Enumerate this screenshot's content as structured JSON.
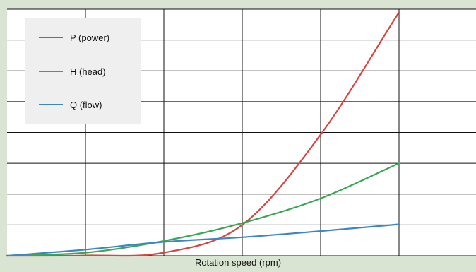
{
  "chart_data": {
    "type": "line",
    "title": "",
    "xlabel": "Rotation speed (rpm)",
    "ylabel": "",
    "x": [
      0,
      1,
      2,
      3,
      4,
      5
    ],
    "xlim": [
      0,
      5
    ],
    "ylim": [
      0,
      8
    ],
    "grid": true,
    "legend": "top-left",
    "series": [
      {
        "name": "P (power)",
        "color": "#d9443f",
        "values": [
          0,
          0.01,
          0.1,
          1.0,
          3.93,
          7.9
        ]
      },
      {
        "name": "H (head)",
        "color": "#37a852",
        "values": [
          0,
          0.1,
          0.48,
          1.06,
          1.86,
          3.0
        ]
      },
      {
        "name": "Q (flow)",
        "color": "#3c86c6",
        "values": [
          0,
          0.2,
          0.45,
          0.6,
          0.8,
          1.02
        ]
      }
    ]
  },
  "colors": {
    "background": "#d9e4d2",
    "plot_area": "#ffffff",
    "grid": "#111111",
    "legend_background": "#efefef"
  }
}
